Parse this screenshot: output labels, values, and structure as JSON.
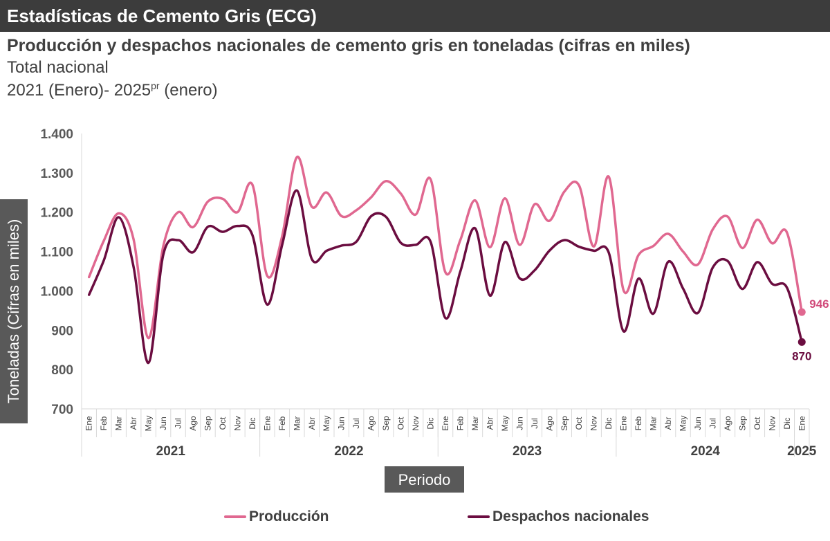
{
  "header": {
    "banner": "Estadísticas de Cemento Gris (ECG)",
    "subtitle": "Producción y despachos nacionales de cemento gris en toneladas (cifras en miles)",
    "scope": "Total nacional",
    "period_main": "2021 (Enero)- 2025",
    "period_sup": "pr",
    "period_tail": " (enero)"
  },
  "colors": {
    "produccion": "#e06890",
    "despachos": "#6b0d40",
    "produccion_label": "#d14a7a",
    "despachos_label": "#6b0d40"
  },
  "chart_data": {
    "type": "line",
    "title": "",
    "xlabel": "Periodo",
    "ylabel": "Toneladas (Cifras en miles)",
    "ylim": [
      700,
      1400
    ],
    "yticks": [
      700,
      800,
      900,
      1000,
      1100,
      1200,
      1300,
      1400
    ],
    "ytick_labels": [
      "700",
      "800",
      "900",
      "1.000",
      "1.100",
      "1.200",
      "1.300",
      "1.400"
    ],
    "grid": false,
    "legend_position": "bottom",
    "x": [
      "Ene",
      "Feb",
      "Mar",
      "Abr",
      "May",
      "Jun",
      "Jul",
      "Ago",
      "Sep",
      "Oct",
      "Nov",
      "Dic",
      "Ene",
      "Feb",
      "Mar",
      "Abr",
      "May",
      "Jun",
      "Jul",
      "Ago",
      "Sep",
      "Oct",
      "Nov",
      "Dic",
      "Ene",
      "Feb",
      "Mar",
      "Abr",
      "May",
      "Jun",
      "Jul",
      "Ago",
      "Sep",
      "Oct",
      "Nov",
      "Dic",
      "Ene",
      "Feb",
      "Mar",
      "Abr",
      "May",
      "Jun",
      "Jul",
      "Ago",
      "Sep",
      "Oct",
      "Nov",
      "Dic",
      "Ene"
    ],
    "year_groups": [
      {
        "label": "2021",
        "count": 12
      },
      {
        "label": "2022",
        "count": 12
      },
      {
        "label": "2023",
        "count": 12
      },
      {
        "label": "2024",
        "count": 12
      },
      {
        "label": "2025",
        "count": 1
      }
    ],
    "series": [
      {
        "name": "Producción",
        "values": [
          1035,
          1128,
          1197,
          1131,
          880,
          1114,
          1200,
          1162,
          1227,
          1234,
          1200,
          1270,
          1038,
          1138,
          1340,
          1214,
          1250,
          1190,
          1205,
          1238,
          1279,
          1247,
          1194,
          1284,
          1047,
          1129,
          1230,
          1111,
          1235,
          1117,
          1220,
          1178,
          1252,
          1268,
          1113,
          1290,
          1001,
          1091,
          1114,
          1145,
          1100,
          1067,
          1156,
          1189,
          1109,
          1181,
          1121,
          1148,
          946
        ],
        "last_label": "946"
      },
      {
        "name": "Despachos nacionales",
        "values": [
          990,
          1078,
          1187,
          1061,
          817,
          1092,
          1129,
          1098,
          1163,
          1150,
          1165,
          1142,
          965,
          1116,
          1255,
          1081,
          1102,
          1115,
          1125,
          1190,
          1188,
          1122,
          1117,
          1125,
          931,
          1049,
          1159,
          988,
          1124,
          1032,
          1052,
          1102,
          1129,
          1112,
          1102,
          1097,
          897,
          1031,
          942,
          1074,
          1006,
          944,
          1059,
          1076,
          1005,
          1073,
          1018,
          1008,
          870
        ],
        "last_label": "870"
      }
    ]
  }
}
